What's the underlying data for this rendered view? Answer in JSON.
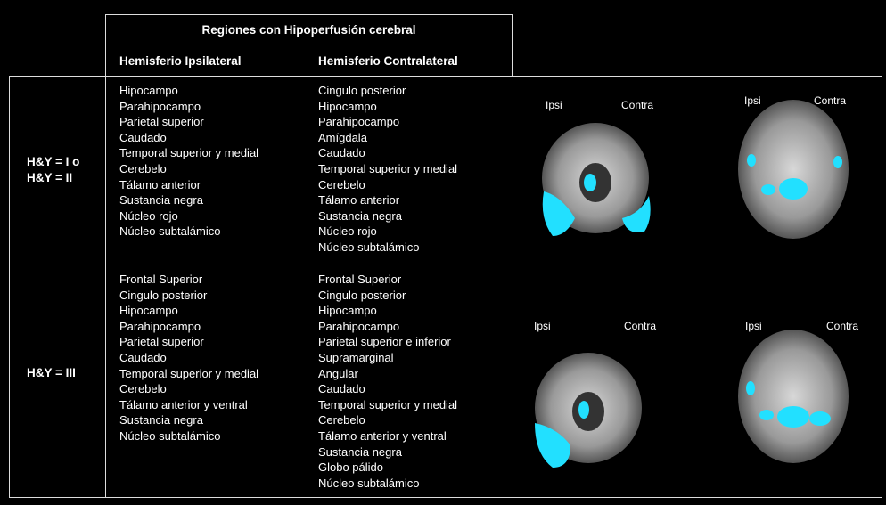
{
  "table": {
    "title": "Regiones con Hipoperfusión cerebral",
    "columns": [
      "Hemisferio Ipsilateral",
      "Hemisferio Contralateral"
    ],
    "rows": [
      {
        "label": "H&Y = I o H&Y = II",
        "ipsi": [
          "Hipocampo",
          "Parahipocampo",
          "Parietal superior",
          "Caudado",
          "Temporal superior y medial",
          "Cerebelo",
          "Tálamo anterior",
          "Sustancia negra",
          "Núcleo rojo",
          "Núcleo subtalámico"
        ],
        "contra": [
          "Cingulo posterior",
          "Hipocampo",
          "Parahipocampo",
          "Amígdala",
          "Caudado",
          "Temporal superior y medial",
          "Cerebelo",
          "Tálamo anterior",
          "Sustancia negra",
          "Núcleo rojo",
          "Núcleo subtalámico"
        ],
        "images": [
          [
            "Ipsi",
            "Contra"
          ],
          [
            "Ipsi",
            "Contra"
          ]
        ]
      },
      {
        "label": "H&Y = III",
        "ipsi": [
          "Frontal Superior",
          "Cingulo posterior",
          "Hipocampo",
          "Parahipocampo",
          "Parietal superior",
          "Caudado",
          "Temporal superior y medial",
          "Cerebelo",
          "Tálamo anterior y ventral",
          "Sustancia negra",
          "Núcleo subtalámico"
        ],
        "contra": [
          "Frontal Superior",
          "Cingulo posterior",
          "Hipocampo",
          "Parahipocampo",
          "Parietal superior e inferior",
          "Supramarginal",
          "Angular",
          "Caudado",
          "Temporal superior y medial",
          "Cerebelo",
          "Tálamo anterior y ventral",
          "Sustancia negra",
          "Globo pálido",
          "Núcleo subtalámico"
        ],
        "images": [
          [
            "Ipsi",
            "Contra"
          ],
          [
            "Ipsi",
            "Contra"
          ]
        ]
      }
    ]
  }
}
